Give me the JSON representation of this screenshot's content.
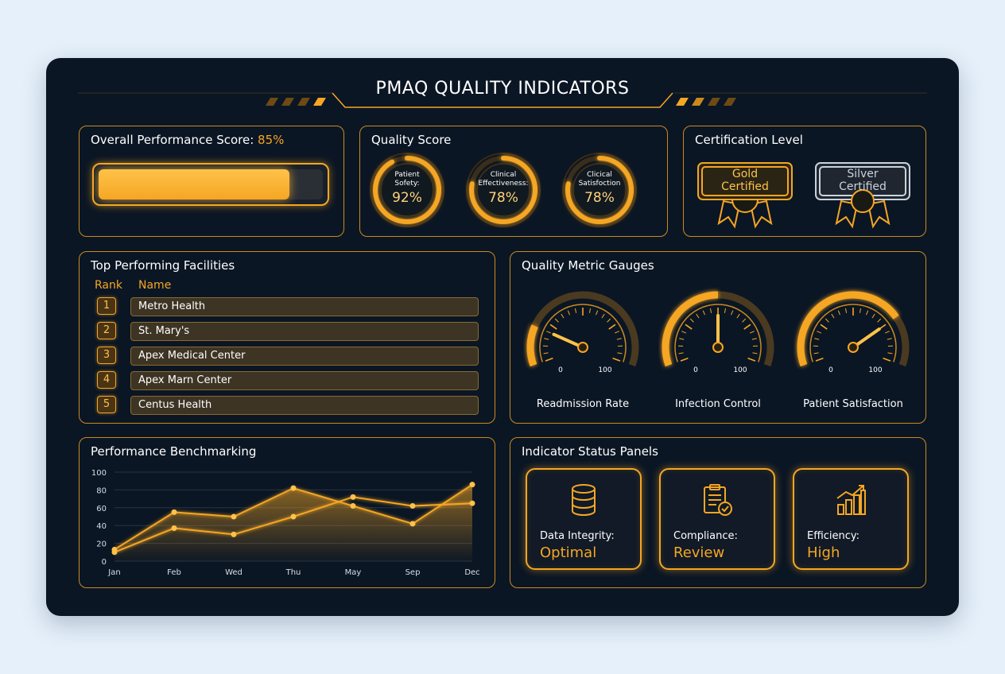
{
  "title": "PMAQ QUALITY INDICATORS",
  "colors": {
    "accent": "#f5a623",
    "background": "#0b1624",
    "panel_border": "#c98a1e",
    "silver": "#c9d2dc"
  },
  "overall": {
    "label": "Overall Performance Score:",
    "value": "85%",
    "fraction": 0.85
  },
  "quality_score": {
    "title": "Quality Score",
    "rings": [
      {
        "label_line1": "Patient",
        "label_line2": "Sofety:",
        "value": "92%",
        "fraction": 0.92
      },
      {
        "label_line1": "Clinical",
        "label_line2": "Effectiveness:",
        "value": "78%",
        "fraction": 0.78
      },
      {
        "label_line1": "Clicical",
        "label_line2": "Satisfoction",
        "value": "78%",
        "fraction": 0.78
      }
    ]
  },
  "certification": {
    "title": "Certification Level",
    "badges": [
      {
        "line1": "Gold",
        "line2": "Certified",
        "tone": "gold",
        "icon": "ribbon-badge-icon"
      },
      {
        "line1": "Silver",
        "line2": "Certified",
        "tone": "silver",
        "icon": "ribbon-badge-icon"
      }
    ]
  },
  "facilities": {
    "title": "Top Performing Facilities",
    "rank_header": "Rank",
    "name_header": "Name",
    "rows": [
      {
        "rank": "1",
        "name": "Metro Health"
      },
      {
        "rank": "2",
        "name": "St. Mary's"
      },
      {
        "rank": "3",
        "name": "Apex Medical Center"
      },
      {
        "rank": "4",
        "name": "Apex Marn Center"
      },
      {
        "rank": "5",
        "name": "Centus Health"
      }
    ]
  },
  "gauges": {
    "title": "Quality Metric Gauges",
    "items": [
      {
        "label": "Readmission Rate",
        "min": "0",
        "max": "100",
        "value": 20
      },
      {
        "label": "Infection Control",
        "min": "0",
        "max": "100",
        "value": 50
      },
      {
        "label": "Patient Satisfaction",
        "min": "0",
        "max": "100",
        "value": 75
      }
    ]
  },
  "benchmark": {
    "title": "Performance Benchmarking"
  },
  "chart_data": {
    "type": "line",
    "categories": [
      "Jan",
      "Feb",
      "Wed",
      "Thu",
      "May",
      "Sep",
      "Dec"
    ],
    "series": [
      {
        "values": [
          13,
          55,
          50,
          82,
          62,
          42,
          86
        ],
        "filled": true
      },
      {
        "values": [
          10,
          37,
          30,
          50,
          72,
          62,
          65
        ],
        "filled": false
      }
    ],
    "ylim": [
      0,
      100
    ],
    "yticks": [
      "0",
      "20",
      "40",
      "60",
      "80",
      "100"
    ],
    "grid": true
  },
  "status": {
    "title": "Indicator Status Panels",
    "panels": [
      {
        "label": "Data Integrity:",
        "value": "Optimal",
        "icon": "database-icon"
      },
      {
        "label": "Compliance:",
        "value": "Review",
        "icon": "clipboard-check-icon"
      },
      {
        "label": "Efficiency:",
        "value": "High",
        "icon": "bar-chart-up-icon"
      }
    ]
  }
}
